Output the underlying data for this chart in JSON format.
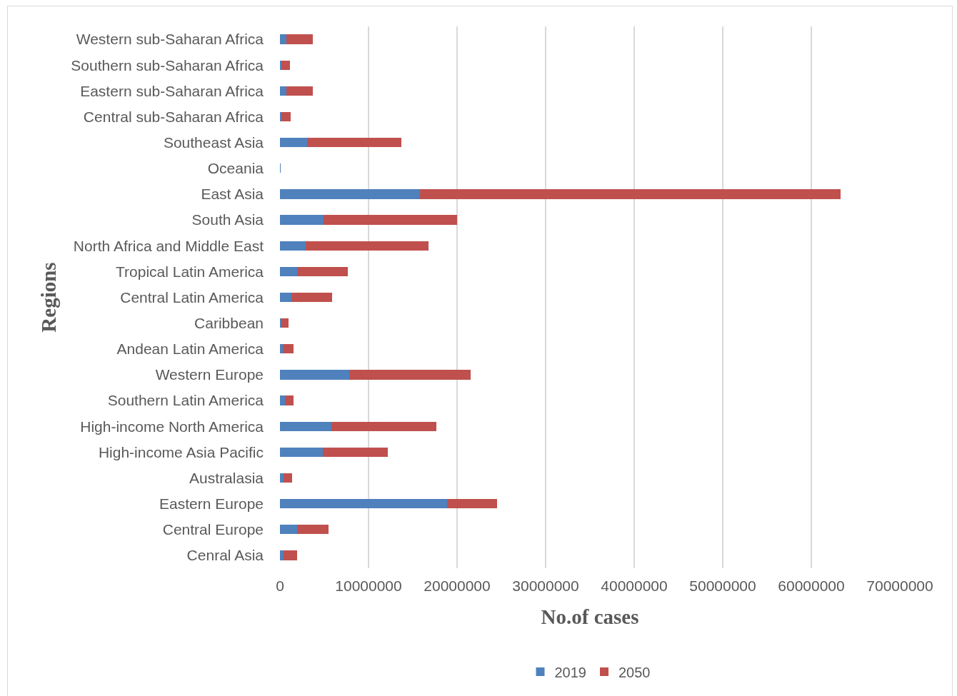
{
  "chart_data": {
    "type": "bar",
    "orientation": "horizontal",
    "stacked": true,
    "xlabel": "No.of cases",
    "ylabel": "Regions",
    "categories": [
      "Western sub-Saharan Africa",
      "Southern sub-Saharan Africa",
      "Eastern sub-Saharan Africa",
      "Central sub-Saharan Africa",
      "Southeast Asia",
      "Oceania",
      "East Asia",
      "South Asia",
      "North Africa and Middle East",
      "Tropical Latin America",
      "Central Latin America",
      "Caribbean",
      "Andean Latin America",
      "Western Europe",
      "Southern Latin America",
      "High-income North America",
      "High-income Asia Pacific",
      "Australasia",
      "Eastern Europe",
      "Central Europe",
      "Cenral Asia"
    ],
    "series": [
      {
        "name": "2019",
        "color": "#4f81bd",
        "values": [
          700000,
          200000,
          700000,
          200000,
          3100000,
          50000,
          15800000,
          4900000,
          2900000,
          1900000,
          1300000,
          200000,
          300000,
          7800000,
          600000,
          5800000,
          4800000,
          400000,
          18900000,
          1900000,
          400000
        ]
      },
      {
        "name": "2050",
        "color": "#c0504d",
        "values": [
          3000000,
          900000,
          3000000,
          1000000,
          10600000,
          50000,
          47500000,
          15100000,
          13900000,
          5800000,
          4600000,
          800000,
          1200000,
          13700000,
          900000,
          11900000,
          7400000,
          1000000,
          5600000,
          3600000,
          1500000
        ]
      }
    ],
    "xlim": [
      0,
      70000000
    ],
    "xticks": [
      0,
      10000000,
      20000000,
      30000000,
      40000000,
      50000000,
      60000000,
      70000000
    ],
    "grid": "x",
    "legend": "bottom"
  }
}
